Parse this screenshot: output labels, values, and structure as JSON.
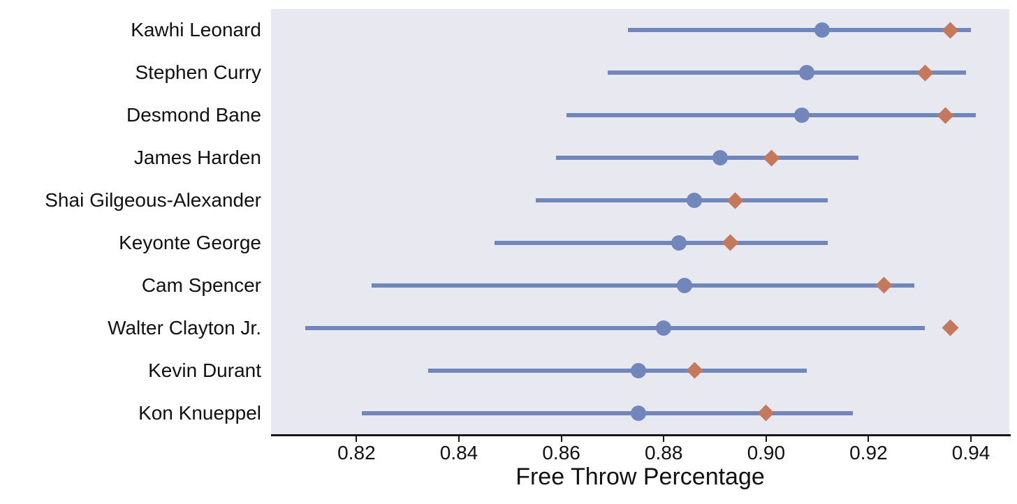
{
  "chart_data": {
    "type": "scatter",
    "subtype": "dot-interval-plot",
    "title": "",
    "xlabel": "Free Throw Percentage",
    "xlim": [
      0.8033,
      0.9475
    ],
    "xticks": [
      0.82,
      0.84,
      0.86,
      0.88,
      0.9,
      0.92,
      0.94
    ],
    "xtick_labels": [
      "0.82",
      "0.84",
      "0.86",
      "0.88",
      "0.90",
      "0.92",
      "0.94"
    ],
    "grid": false,
    "legend": false,
    "markers": {
      "interval_line": "horizontal line from ci_low to ci_high",
      "circle": "blue circle marker",
      "diamond": "orange diamond marker"
    },
    "rows": [
      {
        "player": "Kawhi Leonard",
        "ci_low": 0.873,
        "ci_high": 0.94,
        "circle": 0.911,
        "diamond": 0.936
      },
      {
        "player": "Stephen Curry",
        "ci_low": 0.869,
        "ci_high": 0.939,
        "circle": 0.908,
        "diamond": 0.931
      },
      {
        "player": "Desmond Bane",
        "ci_low": 0.861,
        "ci_high": 0.941,
        "circle": 0.907,
        "diamond": 0.935
      },
      {
        "player": "James Harden",
        "ci_low": 0.859,
        "ci_high": 0.918,
        "circle": 0.891,
        "diamond": 0.901
      },
      {
        "player": "Shai Gilgeous-Alexander",
        "ci_low": 0.855,
        "ci_high": 0.912,
        "circle": 0.886,
        "diamond": 0.894
      },
      {
        "player": "Keyonte George",
        "ci_low": 0.847,
        "ci_high": 0.912,
        "circle": 0.883,
        "diamond": 0.893
      },
      {
        "player": "Cam Spencer",
        "ci_low": 0.823,
        "ci_high": 0.929,
        "circle": 0.884,
        "diamond": 0.923
      },
      {
        "player": "Walter Clayton Jr.",
        "ci_low": 0.81,
        "ci_high": 0.931,
        "circle": 0.88,
        "diamond": 0.936
      },
      {
        "player": "Kevin Durant",
        "ci_low": 0.834,
        "ci_high": 0.908,
        "circle": 0.875,
        "diamond": 0.886
      },
      {
        "player": "Kon Knueppel",
        "ci_low": 0.821,
        "ci_high": 0.917,
        "circle": 0.875,
        "diamond": 0.9
      }
    ]
  },
  "colors": {
    "plot_background": "#e8e8f1",
    "page_background": "#ffffff",
    "line_blue": "#7187bc",
    "circle_blue": "#7187bc",
    "diamond_orange": "#c4785c",
    "spine_black": "#161616",
    "tick_black": "#161616",
    "text_black": "#111111"
  }
}
